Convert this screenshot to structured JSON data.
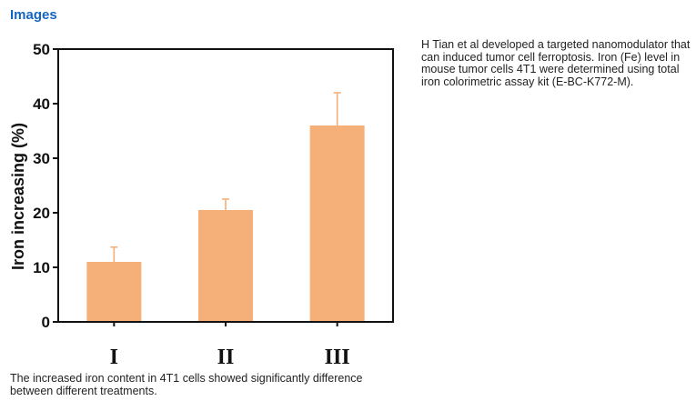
{
  "section": {
    "title": "Images"
  },
  "description": "H Tian et al developed a targeted nanomodulator that can induced tumor cell ferroptosis. Iron (Fe) level in mouse tumor cells 4T1 were determined using total iron colorimetric assay kit (E-BC-K772-M).",
  "caption": "The increased iron content in 4T1 cells showed significantly difference between different treatments.",
  "chart_data": {
    "type": "bar",
    "categories": [
      "I",
      "II",
      "III"
    ],
    "values": [
      11,
      20.5,
      36
    ],
    "errors": [
      2.7,
      2,
      6
    ],
    "ylabel": "Iron increasing (%)",
    "xlabel": "",
    "ylim": [
      0,
      50
    ],
    "yticks": [
      0,
      10,
      20,
      30,
      40,
      50
    ],
    "grid": false,
    "colors": {
      "bar": "#f5b07a",
      "error": "#f5b07a",
      "axis": "#111111"
    }
  }
}
